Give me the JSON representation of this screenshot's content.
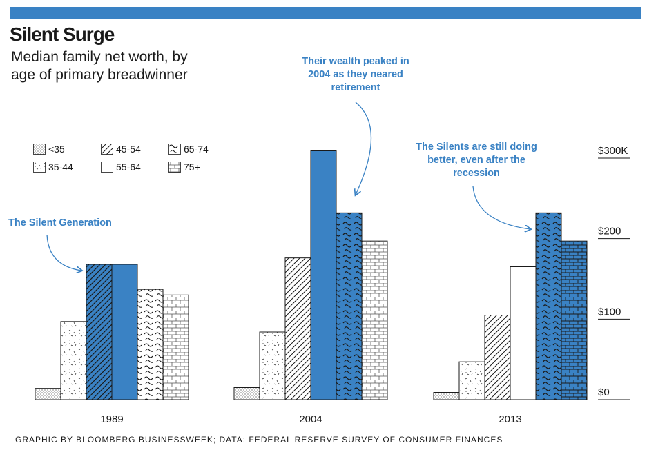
{
  "header": {
    "title": "Silent Surge",
    "subtitle": "Median family net worth, by age of primary breadwinner"
  },
  "legend": [
    {
      "label": "<35",
      "pattern": "dots"
    },
    {
      "label": "35-44",
      "pattern": "specks"
    },
    {
      "label": "45-54",
      "pattern": "hatch"
    },
    {
      "label": "55-64",
      "pattern": "plain"
    },
    {
      "label": "65-74",
      "pattern": "wave"
    },
    {
      "label": "75+",
      "pattern": "brick"
    }
  ],
  "annotations": {
    "silent_generation": "The Silent Generation",
    "peak": "Their wealth peaked in 2004 as they neared retirement",
    "still_better": "The Silents are still doing better, even after the recession"
  },
  "colors": {
    "accent": "#3a82c4",
    "bar_outline": "#1a1a1a",
    "bar_fill": "#ffffff"
  },
  "chart_data": {
    "type": "bar",
    "categories": [
      "1989",
      "2004",
      "2013"
    ],
    "series": [
      {
        "name": "<35",
        "values": [
          14,
          15,
          9
        ]
      },
      {
        "name": "35-44",
        "values": [
          97,
          84,
          47
        ]
      },
      {
        "name": "45-54",
        "values": [
          168,
          176,
          105
        ]
      },
      {
        "name": "55-64",
        "values": [
          168,
          309,
          165
        ]
      },
      {
        "name": "65-74",
        "values": [
          137,
          232,
          232
        ]
      },
      {
        "name": "75+",
        "values": [
          130,
          197,
          197
        ]
      }
    ],
    "highlight": [
      {
        "category": "1989",
        "series": [
          "45-54",
          "55-64"
        ]
      },
      {
        "category": "2004",
        "series": [
          "55-64",
          "65-74"
        ]
      },
      {
        "category": "2013",
        "series": [
          "65-74",
          "75+"
        ]
      }
    ],
    "ylim": [
      0,
      300
    ],
    "yticks": [
      0,
      100,
      200,
      300
    ],
    "ytick_labels": [
      "$0",
      "$100",
      "$200",
      "$300K"
    ],
    "axis_position": "right",
    "grid": false,
    "legend_position": "top-left"
  },
  "footer": {
    "credit": "GRAPHIC BY BLOOMBERG BUSINESSWEEK; DATA: FEDERAL RESERVE SURVEY OF CONSUMER FINANCES"
  }
}
